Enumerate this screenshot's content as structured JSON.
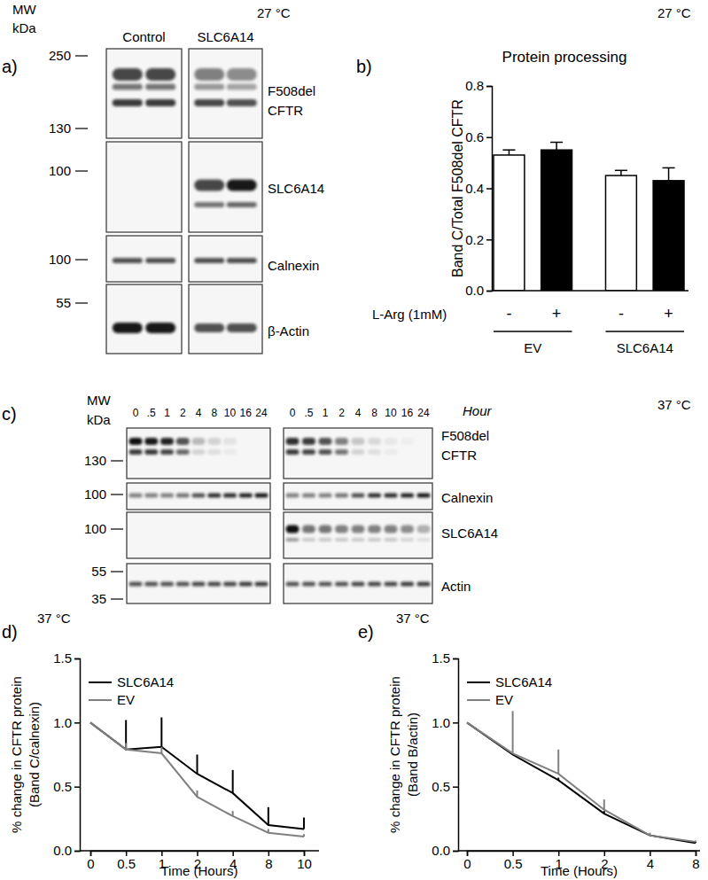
{
  "blots": [
    {
      "panel_label": "a)",
      "annotation": "27 °C",
      "mw_title": [
        "MW",
        "kDa"
      ],
      "lanes": [
        "Control",
        "SLC6A14"
      ],
      "rows": [
        {
          "name": [
            "F508del",
            "CFTR"
          ],
          "markers": [
            250,
            130
          ]
        },
        {
          "name": [
            "SLC6A14"
          ],
          "markers": [
            100
          ]
        },
        {
          "name": [
            "Calnexin"
          ],
          "markers": [
            100
          ]
        },
        {
          "name": [
            "β-Actin"
          ],
          "markers": [
            55
          ]
        }
      ]
    },
    {
      "panel_label": "c)",
      "annotation": "37 °C",
      "mw_title": [
        "MW",
        "kDa"
      ],
      "time_label": "Hour",
      "times": [
        "0",
        ".5",
        "1",
        "2",
        "4",
        "8",
        "10",
        "16",
        "24"
      ],
      "rows": [
        {
          "name": [
            "F508del",
            "CFTR"
          ],
          "markers": [
            130
          ]
        },
        {
          "name": [
            "Calnexin"
          ],
          "markers": [
            100
          ]
        },
        {
          "name": [
            "SLC6A14"
          ],
          "markers": [
            100
          ]
        },
        {
          "name": [
            "Actin"
          ],
          "markers": [
            55,
            35
          ]
        }
      ]
    }
  ],
  "chart_data": [
    {
      "type": "bar",
      "panel_label": "b)",
      "annotation": "27 °C",
      "title": "Protein processing",
      "y_label": "Band C/Total F508del CFTR",
      "series_label": "L-Arg (1mM)",
      "categories": [
        "EV",
        "SLC6A14"
      ],
      "series": [
        {
          "name": "-",
          "color": "#ffffff",
          "values": [
            0.53,
            0.45
          ],
          "errors": [
            0.02,
            0.02
          ]
        },
        {
          "name": "+",
          "color": "#000000",
          "values": [
            0.55,
            0.43
          ],
          "errors": [
            0.03,
            0.05
          ]
        }
      ],
      "ylim": [
        0,
        0.8
      ],
      "yticks": [
        {
          "value": 0,
          "label": "0.0"
        },
        {
          "value": 0.2,
          "label": "0.2"
        },
        {
          "value": 0.4,
          "label": "0.4"
        },
        {
          "value": 0.6,
          "label": "0.6"
        },
        {
          "value": 0.8,
          "label": "0.8"
        }
      ],
      "grid": false
    },
    {
      "type": "line",
      "panel_label": "d)",
      "annotation": "37 °C",
      "y_label": [
        "% change in CFTR protein",
        "(Band C/calnexin)"
      ],
      "x_label": "Time (Hours)",
      "categories": [
        "0",
        "0.5",
        "1",
        "2",
        "4",
        "8",
        "10"
      ],
      "series": [
        {
          "name": "SLC6A14",
          "color": "#000000",
          "values": [
            1.0,
            0.79,
            0.81,
            0.6,
            0.45,
            0.2,
            0.17
          ],
          "errors": [
            0,
            0.23,
            0.23,
            0.15,
            0.18,
            0.14,
            0.09
          ]
        },
        {
          "name": "EV",
          "color": "#808080",
          "values": [
            1.0,
            0.79,
            0.76,
            0.42,
            0.27,
            0.14,
            0.11
          ],
          "errors": [
            0,
            0.05,
            0.05,
            0.05,
            0.04,
            0.03,
            0.02
          ]
        }
      ],
      "ylim": [
        0,
        1.5
      ],
      "yticks": [
        {
          "value": 0,
          "label": "0.0"
        },
        {
          "value": 0.5,
          "label": "0.5"
        },
        {
          "value": 1,
          "label": "1.0"
        },
        {
          "value": 1.5,
          "label": "1.5"
        }
      ],
      "legend": "top-left",
      "grid": false
    },
    {
      "type": "line",
      "panel_label": "e)",
      "annotation": "37 °C",
      "y_label": [
        "% change in CFTR protein",
        "(Band B/actin)"
      ],
      "x_label": "Time (Hours)",
      "categories": [
        "0",
        "0.5",
        "1",
        "2",
        "4",
        "8"
      ],
      "series": [
        {
          "name": "SLC6A14",
          "color": "#000000",
          "values": [
            1.0,
            0.75,
            0.55,
            0.29,
            0.12,
            0.06
          ],
          "errors": [
            0,
            0,
            0.02,
            0.02,
            0.01,
            0.01
          ]
        },
        {
          "name": "EV",
          "color": "#808080",
          "values": [
            1.0,
            0.76,
            0.6,
            0.32,
            0.12,
            0.07
          ],
          "errors": [
            0,
            0.33,
            0.19,
            0.08,
            0.02,
            0.01
          ]
        }
      ],
      "ylim": [
        0,
        1.5
      ],
      "yticks": [
        {
          "value": 0,
          "label": "0.0"
        },
        {
          "value": 0.5,
          "label": "0.5"
        },
        {
          "value": 1,
          "label": "1.0"
        },
        {
          "value": 1.5,
          "label": "1.5"
        }
      ],
      "legend": "top-left",
      "grid": false
    }
  ]
}
